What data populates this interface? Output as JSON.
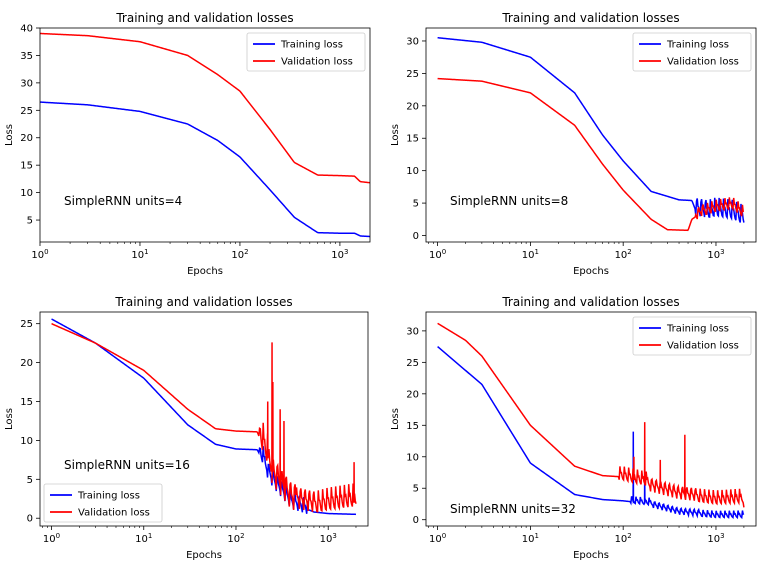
{
  "chart_data": [
    {
      "type": "line",
      "title": "Training and validation losses",
      "xlabel": "Epochs",
      "ylabel": "Loss",
      "xscale": "log",
      "xlim": [
        1,
        2000
      ],
      "ylim": [
        1,
        40
      ],
      "xticks": [
        {
          "v": 1,
          "base": "10",
          "exp": "0"
        },
        {
          "v": 10,
          "base": "10",
          "exp": "1"
        },
        {
          "v": 100,
          "base": "10",
          "exp": "2"
        },
        {
          "v": 1000,
          "base": "10",
          "exp": "3"
        }
      ],
      "yticks": [
        5,
        10,
        15,
        20,
        25,
        30,
        35,
        40
      ],
      "annotation": "SimpleRNN units=4",
      "legend_position": "top-right",
      "series": [
        {
          "name": "Training loss",
          "color": "#0000ff",
          "points": [
            [
              1,
              26.5
            ],
            [
              3,
              26.0
            ],
            [
              10,
              24.8
            ],
            [
              30,
              22.5
            ],
            [
              60,
              19.5
            ],
            [
              100,
              16.5
            ],
            [
              200,
              10.5
            ],
            [
              350,
              5.5
            ],
            [
              600,
              2.7
            ],
            [
              1000,
              2.6
            ],
            [
              1400,
              2.6
            ],
            [
              1600,
              2.1
            ],
            [
              2000,
              2.0
            ]
          ],
          "noise": []
        },
        {
          "name": "Validation loss",
          "color": "#ff0000",
          "points": [
            [
              1,
              39.0
            ],
            [
              3,
              38.6
            ],
            [
              10,
              37.5
            ],
            [
              30,
              35.0
            ],
            [
              60,
              31.5
            ],
            [
              100,
              28.5
            ],
            [
              200,
              21.5
            ],
            [
              350,
              15.5
            ],
            [
              600,
              13.2
            ],
            [
              1000,
              13.1
            ],
            [
              1400,
              13.0
            ],
            [
              1600,
              12.0
            ],
            [
              2000,
              11.8
            ]
          ],
          "noise": []
        }
      ]
    },
    {
      "type": "line",
      "title": "Training and validation losses",
      "xlabel": "Epochs",
      "ylabel": "Loss",
      "xscale": "log",
      "xlim": [
        0.75,
        2700
      ],
      "ylim": [
        -1,
        32
      ],
      "xticks": [
        {
          "v": 1,
          "base": "10",
          "exp": "0"
        },
        {
          "v": 10,
          "base": "10",
          "exp": "1"
        },
        {
          "v": 100,
          "base": "10",
          "exp": "2"
        },
        {
          "v": 1000,
          "base": "10",
          "exp": "3"
        }
      ],
      "yticks": [
        0,
        5,
        10,
        15,
        20,
        25,
        30
      ],
      "annotation": "SimpleRNN units=8",
      "legend_position": "top-right",
      "series": [
        {
          "name": "Training loss",
          "color": "#0000ff",
          "points": [
            [
              1,
              30.5
            ],
            [
              3,
              29.8
            ],
            [
              10,
              27.5
            ],
            [
              30,
              22.0
            ],
            [
              60,
              15.5
            ],
            [
              100,
              11.5
            ],
            [
              200,
              6.8
            ],
            [
              400,
              5.5
            ],
            [
              550,
              5.4
            ],
            [
              600,
              4.0
            ],
            [
              800,
              3.5
            ],
            [
              1000,
              3.8
            ],
            [
              1500,
              3.2
            ],
            [
              2000,
              2.2
            ]
          ],
          "noise": [
            {
              "from": 600,
              "to": 2000,
              "amp": 4,
              "seed": 3
            }
          ]
        },
        {
          "name": "Validation loss",
          "color": "#ff0000",
          "points": [
            [
              1,
              24.2
            ],
            [
              3,
              23.8
            ],
            [
              10,
              22.0
            ],
            [
              30,
              17.0
            ],
            [
              60,
              11.0
            ],
            [
              100,
              7.0
            ],
            [
              200,
              2.5
            ],
            [
              300,
              0.9
            ],
            [
              500,
              0.8
            ],
            [
              550,
              2.5
            ],
            [
              700,
              3.5
            ],
            [
              1000,
              4.2
            ],
            [
              1500,
              4.5
            ],
            [
              2000,
              3.0
            ]
          ],
          "noise": [
            {
              "from": 600,
              "to": 2000,
              "amp": 2.5,
              "seed": 7
            }
          ]
        }
      ]
    },
    {
      "type": "line",
      "title": "Training and validation losses",
      "xlabel": "Epochs",
      "ylabel": "Loss",
      "xscale": "log",
      "xlim": [
        0.75,
        2700
      ],
      "ylim": [
        -1,
        26.5
      ],
      "xticks": [
        {
          "v": 1,
          "base": "10",
          "exp": "0"
        },
        {
          "v": 10,
          "base": "10",
          "exp": "1"
        },
        {
          "v": 100,
          "base": "10",
          "exp": "2"
        },
        {
          "v": 1000,
          "base": "10",
          "exp": "3"
        }
      ],
      "yticks": [
        0,
        5,
        10,
        15,
        20,
        25
      ],
      "annotation": "SimpleRNN units=16",
      "legend_position": "bottom-left",
      "series": [
        {
          "name": "Training loss",
          "color": "#0000ff",
          "points": [
            [
              1,
              25.6
            ],
            [
              3,
              22.5
            ],
            [
              10,
              18.0
            ],
            [
              30,
              12.0
            ],
            [
              60,
              9.5
            ],
            [
              100,
              8.9
            ],
            [
              170,
              8.8
            ],
            [
              250,
              5.0
            ],
            [
              400,
              2.0
            ],
            [
              700,
              0.8
            ],
            [
              1000,
              0.6
            ],
            [
              2000,
              0.5
            ]
          ],
          "noise": [
            {
              "from": 180,
              "to": 600,
              "amp": 3,
              "seed": 11
            }
          ]
        },
        {
          "name": "Validation loss",
          "color": "#ff0000",
          "points": [
            [
              1,
              25.0
            ],
            [
              3,
              22.5
            ],
            [
              10,
              19.0
            ],
            [
              30,
              14.0
            ],
            [
              60,
              11.5
            ],
            [
              100,
              11.2
            ],
            [
              170,
              11.1
            ],
            [
              250,
              6.0
            ],
            [
              400,
              2.5
            ],
            [
              700,
              1.5
            ],
            [
              1000,
              1.8
            ],
            [
              2000,
              2.0
            ]
          ],
          "noise": [
            {
              "from": 180,
              "to": 450,
              "amp": 5,
              "seed": 5
            },
            {
              "from": 450,
              "to": 2000,
              "amp": 4,
              "seed": 9
            }
          ],
          "spikes": [
            [
              245,
              22.6
            ],
            [
              250,
              17.5
            ],
            [
              300,
              14.0
            ],
            [
              330,
              12.5
            ],
            [
              220,
              15.0
            ],
            [
              1900,
              7.2
            ]
          ]
        }
      ]
    },
    {
      "type": "line",
      "title": "Training and validation losses",
      "xlabel": "Epochs",
      "ylabel": "Loss",
      "xscale": "log",
      "xlim": [
        0.75,
        2700
      ],
      "ylim": [
        -1,
        33
      ],
      "xticks": [
        {
          "v": 1,
          "base": "10",
          "exp": "0"
        },
        {
          "v": 10,
          "base": "10",
          "exp": "1"
        },
        {
          "v": 100,
          "base": "10",
          "exp": "2"
        },
        {
          "v": 1000,
          "base": "10",
          "exp": "3"
        }
      ],
      "yticks": [
        0,
        5,
        10,
        15,
        20,
        25,
        30
      ],
      "annotation": "SimpleRNN units=32",
      "legend_position": "top-right",
      "series": [
        {
          "name": "Training loss",
          "color": "#0000ff",
          "points": [
            [
              1,
              27.5
            ],
            [
              3,
              21.5
            ],
            [
              10,
              9.0
            ],
            [
              30,
              4.0
            ],
            [
              60,
              3.2
            ],
            [
              100,
              3.0
            ],
            [
              200,
              2.5
            ],
            [
              400,
              1.2
            ],
            [
              1000,
              0.6
            ],
            [
              2000,
              0.5
            ]
          ],
          "noise": [
            {
              "from": 120,
              "to": 2000,
              "amp": 1.5,
              "seed": 13
            }
          ],
          "spikes": [
            [
              128,
              14.0
            ],
            [
              170,
              8.0
            ]
          ]
        },
        {
          "name": "Validation loss",
          "color": "#ff0000",
          "points": [
            [
              1,
              31.2
            ],
            [
              2,
              28.5
            ],
            [
              3,
              26.0
            ],
            [
              10,
              15.0
            ],
            [
              30,
              8.5
            ],
            [
              60,
              7.0
            ],
            [
              100,
              6.8
            ],
            [
              200,
              5.5
            ],
            [
              400,
              4.0
            ],
            [
              1000,
              3.0
            ],
            [
              2000,
              3.0
            ]
          ],
          "noise": [
            {
              "from": 90,
              "to": 2000,
              "amp": 3,
              "seed": 17
            }
          ],
          "spikes": [
            [
              170,
              15.5
            ],
            [
              460,
              13.5
            ],
            [
              250,
              9.5
            ],
            [
              130,
              10.0
            ]
          ]
        }
      ]
    }
  ]
}
